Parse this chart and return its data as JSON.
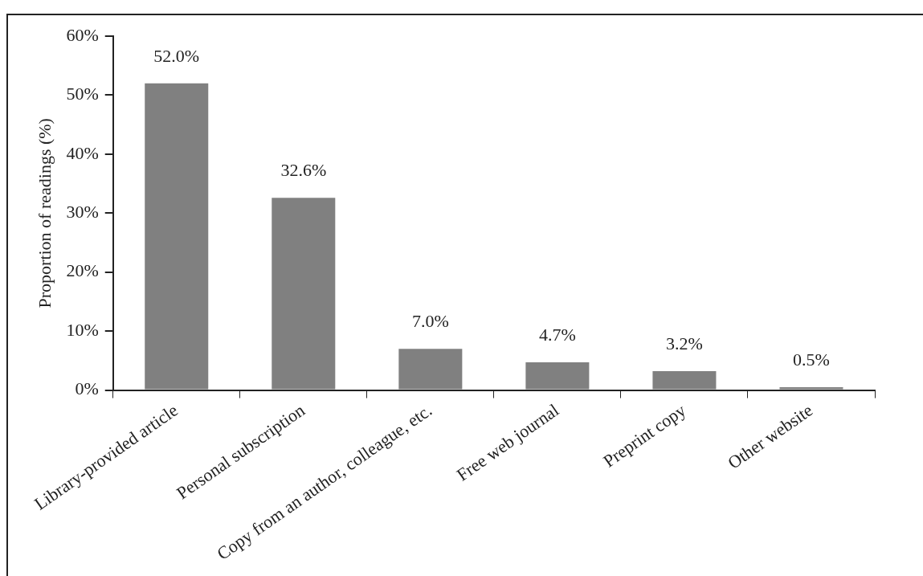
{
  "chart_data": {
    "type": "bar",
    "ylabel": "Proportion of readings (%)",
    "categories": [
      "Library-provided article",
      "Personal subscription",
      "Copy from an author, colleague, etc.",
      "Free web journal",
      "Preprint copy",
      "Other website"
    ],
    "values": [
      52.0,
      32.6,
      7.0,
      4.7,
      3.2,
      0.5
    ],
    "value_labels": [
      "52.0%",
      "32.6%",
      "7.0%",
      "4.7%",
      "3.2%",
      "0.5%"
    ],
    "color": "#808080",
    "ylim": [
      0,
      60
    ],
    "yticks": [
      {
        "value": 0,
        "label": "0%"
      },
      {
        "value": 10,
        "label": "10%"
      },
      {
        "value": 20,
        "label": "20%"
      },
      {
        "value": 30,
        "label": "30%"
      },
      {
        "value": 40,
        "label": "40%"
      },
      {
        "value": 50,
        "label": "50%"
      },
      {
        "value": 60,
        "label": "60%"
      }
    ],
    "grid": false,
    "legend": false
  }
}
